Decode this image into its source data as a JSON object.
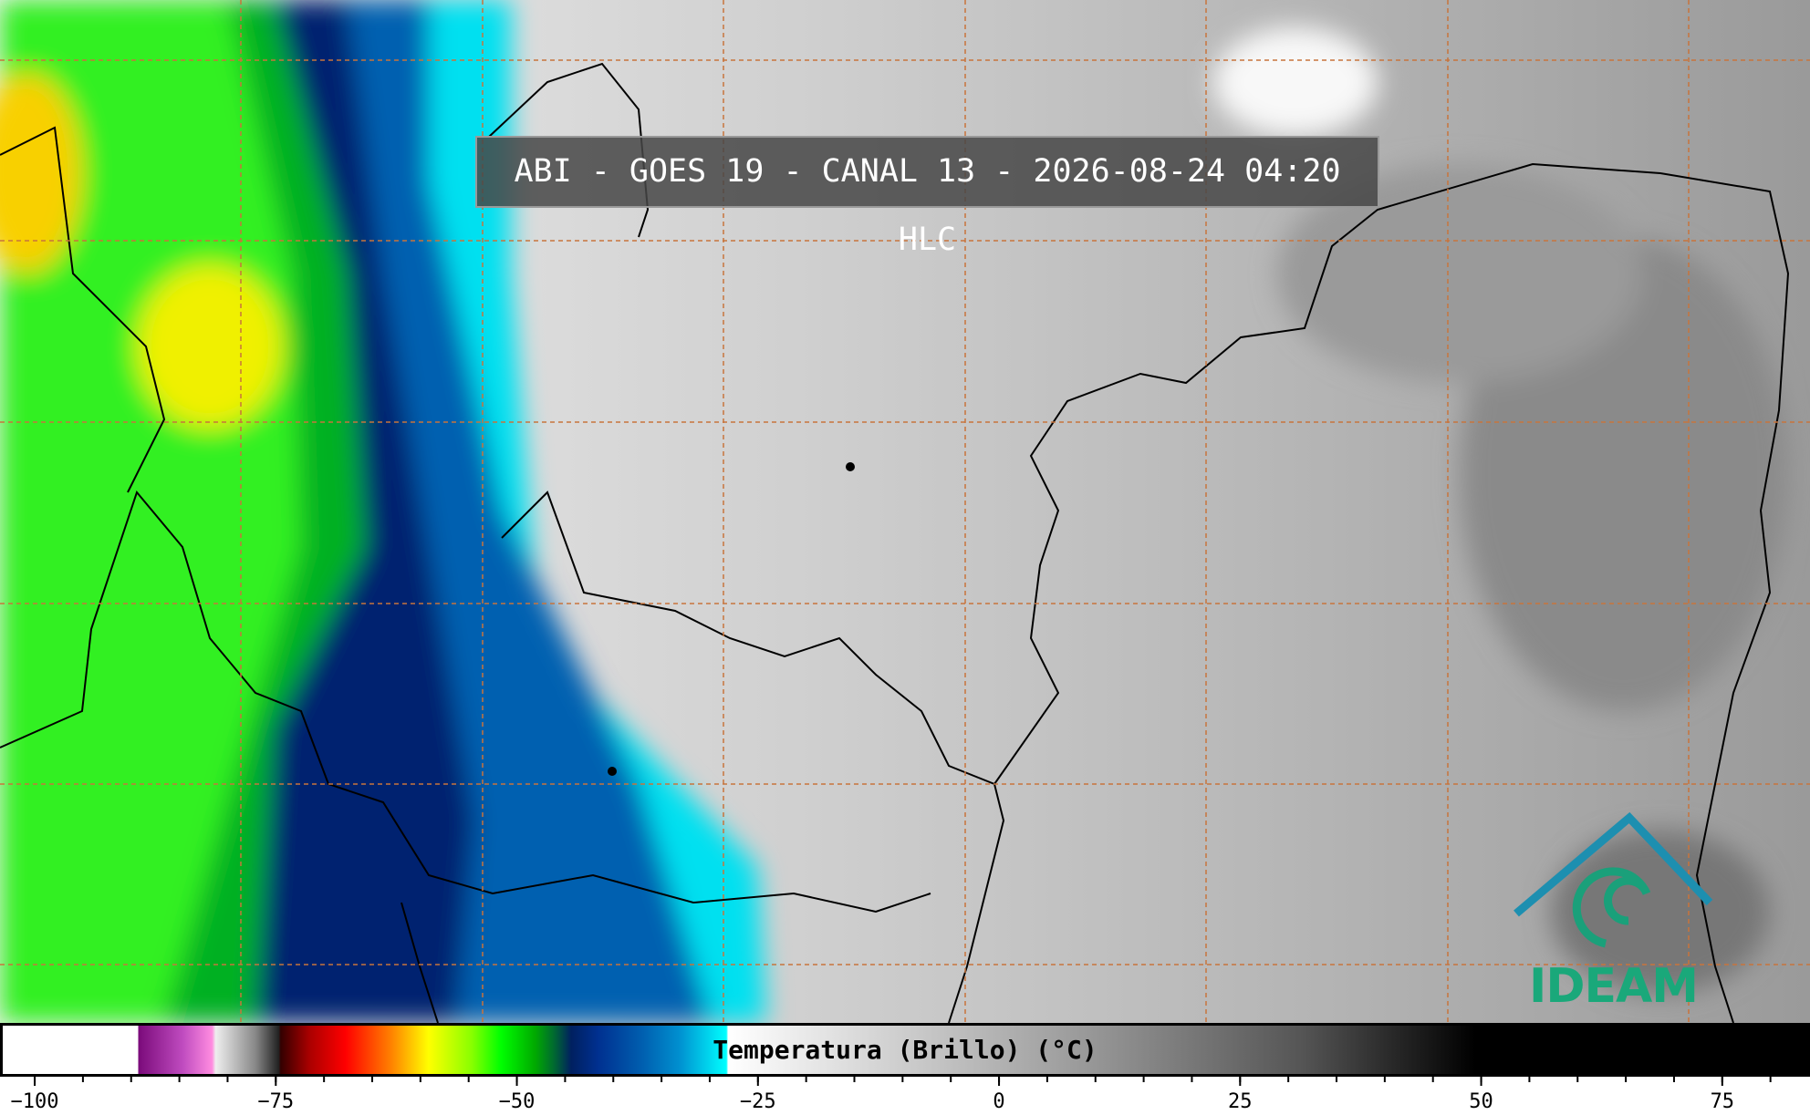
{
  "header": {
    "title": "ABI - GOES 19 - CANAL 13 - 2026-08-24 04:20 HLC"
  },
  "colorbar": {
    "label": "Temperatura (Brillo) (°C)",
    "lim": [
      -103.6,
      84.1
    ],
    "ticks": [
      {
        "value": -100,
        "label": "−100"
      },
      {
        "value": -75,
        "label": "−75"
      },
      {
        "value": -50,
        "label": "−50"
      },
      {
        "value": -25,
        "label": "−25"
      },
      0,
      25,
      50,
      75
    ],
    "minor_tick_step": 5
  },
  "logo": {
    "text": "IDEAM"
  }
}
